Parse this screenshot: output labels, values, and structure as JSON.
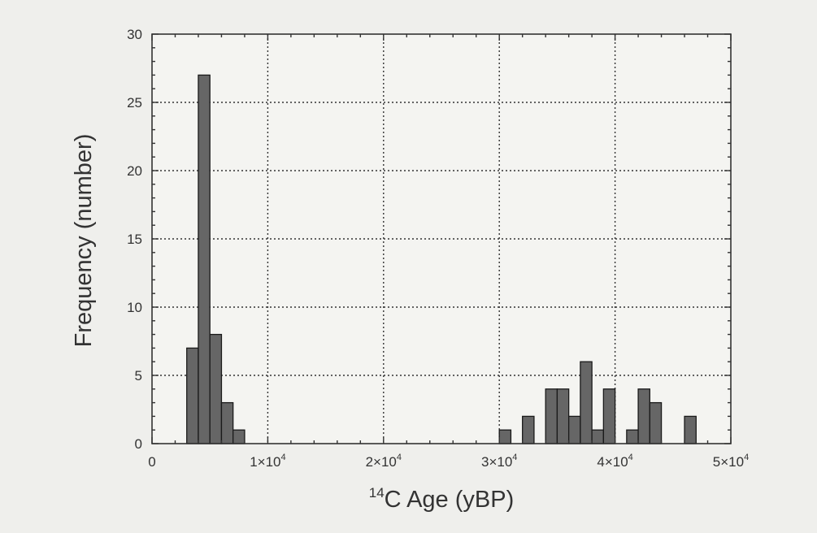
{
  "chart_data": {
    "type": "bar",
    "title": "",
    "xlabel_sup": "14",
    "xlabel_main": "C Age (yBP)",
    "ylabel": "Frequency (number)",
    "xlim": [
      0,
      50000
    ],
    "ylim": [
      0,
      30
    ],
    "grid": true,
    "bin_width": 1000,
    "x_ticks": [
      {
        "value": 0,
        "label": "0"
      },
      {
        "value": 10000,
        "label": "1×10",
        "exp": "4"
      },
      {
        "value": 20000,
        "label": "2×10",
        "exp": "4"
      },
      {
        "value": 30000,
        "label": "3×10",
        "exp": "4"
      },
      {
        "value": 40000,
        "label": "4×10",
        "exp": "4"
      },
      {
        "value": 50000,
        "label": "5×10",
        "exp": "4"
      }
    ],
    "y_ticks": [
      {
        "value": 0,
        "label": "0"
      },
      {
        "value": 5,
        "label": "5"
      },
      {
        "value": 10,
        "label": "10"
      },
      {
        "value": 15,
        "label": "15"
      },
      {
        "value": 20,
        "label": "20"
      },
      {
        "value": 25,
        "label": "25"
      },
      {
        "value": 30,
        "label": "30"
      }
    ],
    "bins": [
      {
        "start": 3000,
        "count": 7
      },
      {
        "start": 4000,
        "count": 27
      },
      {
        "start": 5000,
        "count": 8
      },
      {
        "start": 6000,
        "count": 3
      },
      {
        "start": 7000,
        "count": 1
      },
      {
        "start": 30000,
        "count": 1
      },
      {
        "start": 32000,
        "count": 2
      },
      {
        "start": 34000,
        "count": 4
      },
      {
        "start": 35000,
        "count": 4
      },
      {
        "start": 36000,
        "count": 2
      },
      {
        "start": 37000,
        "count": 6
      },
      {
        "start": 38000,
        "count": 1
      },
      {
        "start": 39000,
        "count": 4
      },
      {
        "start": 41000,
        "count": 1
      },
      {
        "start": 42000,
        "count": 4
      },
      {
        "start": 43000,
        "count": 3
      },
      {
        "start": 46000,
        "count": 2
      }
    ],
    "colors": {
      "bar_fill": "#666666",
      "bar_stroke": "#1a1a1a",
      "axis": "#333333",
      "grid": "#333333",
      "plot_bg": "#f4f4f1"
    }
  }
}
